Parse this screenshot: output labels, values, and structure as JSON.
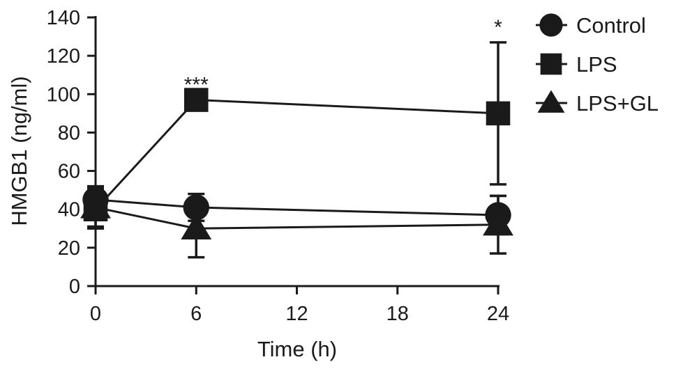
{
  "chart_data": {
    "type": "line",
    "xlabel": "Time (h)",
    "ylabel": "HMGB1 (ng/ml)",
    "xlim": [
      0,
      24
    ],
    "ylim": [
      0,
      140
    ],
    "x_ticks": [
      0,
      6,
      12,
      18,
      24
    ],
    "y_ticks": [
      0,
      20,
      40,
      60,
      80,
      100,
      120,
      140
    ],
    "grid": false,
    "legend_position": "right",
    "x": [
      0,
      6,
      24
    ],
    "series": [
      {
        "name": "Control",
        "marker": "circle",
        "values": [
          45,
          41,
          37
        ],
        "err_upper": [
          7,
          7,
          10
        ],
        "err_lower": [
          7,
          7,
          10
        ]
      },
      {
        "name": "LPS",
        "marker": "square",
        "values": [
          40,
          97,
          90
        ],
        "err_upper": [
          10,
          0,
          37
        ],
        "err_lower": [
          10,
          0,
          37
        ]
      },
      {
        "name": "LPS+GL",
        "marker": "triangle",
        "values": [
          41,
          30,
          32
        ],
        "err_upper": [
          10,
          15,
          15
        ],
        "err_lower": [
          10,
          15,
          15
        ]
      }
    ],
    "annotations": [
      {
        "text": "***",
        "x": 6,
        "y": 97
      },
      {
        "text": "*",
        "x": 24,
        "y": 127
      }
    ],
    "colors": {
      "line": "#1a1a1a"
    }
  }
}
